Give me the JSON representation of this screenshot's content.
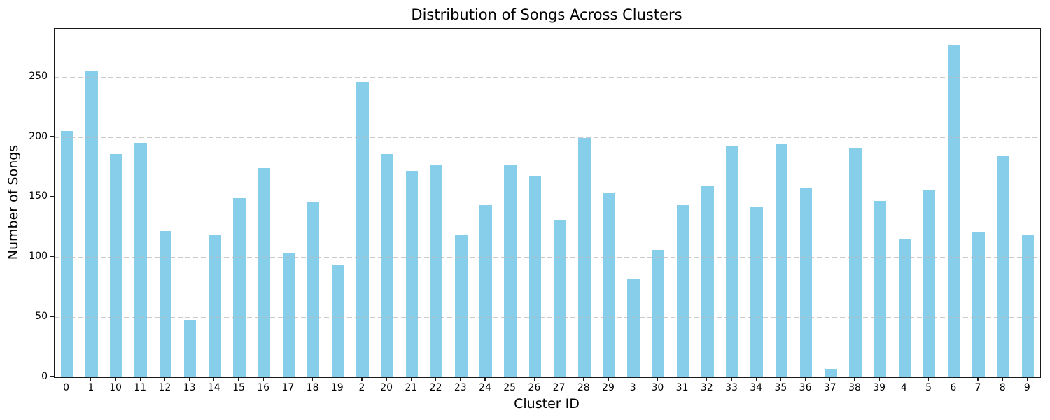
{
  "chart_data": {
    "type": "bar",
    "title": "Distribution of Songs Across Clusters",
    "xlabel": "Cluster ID",
    "ylabel": "Number of Songs",
    "categories": [
      "0",
      "1",
      "10",
      "11",
      "12",
      "13",
      "14",
      "15",
      "16",
      "17",
      "18",
      "19",
      "2",
      "20",
      "21",
      "22",
      "23",
      "24",
      "25",
      "26",
      "27",
      "28",
      "29",
      "3",
      "30",
      "31",
      "32",
      "33",
      "34",
      "35",
      "36",
      "37",
      "38",
      "39",
      "4",
      "5",
      "6",
      "7",
      "8",
      "9"
    ],
    "values": [
      205,
      255,
      186,
      195,
      122,
      48,
      118,
      149,
      174,
      103,
      146,
      93,
      246,
      186,
      172,
      177,
      118,
      143,
      177,
      168,
      131,
      199,
      154,
      82,
      106,
      143,
      159,
      192,
      142,
      194,
      157,
      7,
      191,
      147,
      115,
      156,
      276,
      121,
      184,
      119
    ],
    "yticks": [
      0,
      50,
      100,
      150,
      200,
      250
    ],
    "ylim": [
      0,
      290
    ],
    "grid": true,
    "grid_axis": "y",
    "grid_style": "dashed",
    "legend_position": "none",
    "bar_color": "#87CEEB",
    "grid_color": "#b9b9b9",
    "axis_color": "#1a1a1a",
    "text_color": "#000000",
    "background_color": "#ffffff"
  }
}
